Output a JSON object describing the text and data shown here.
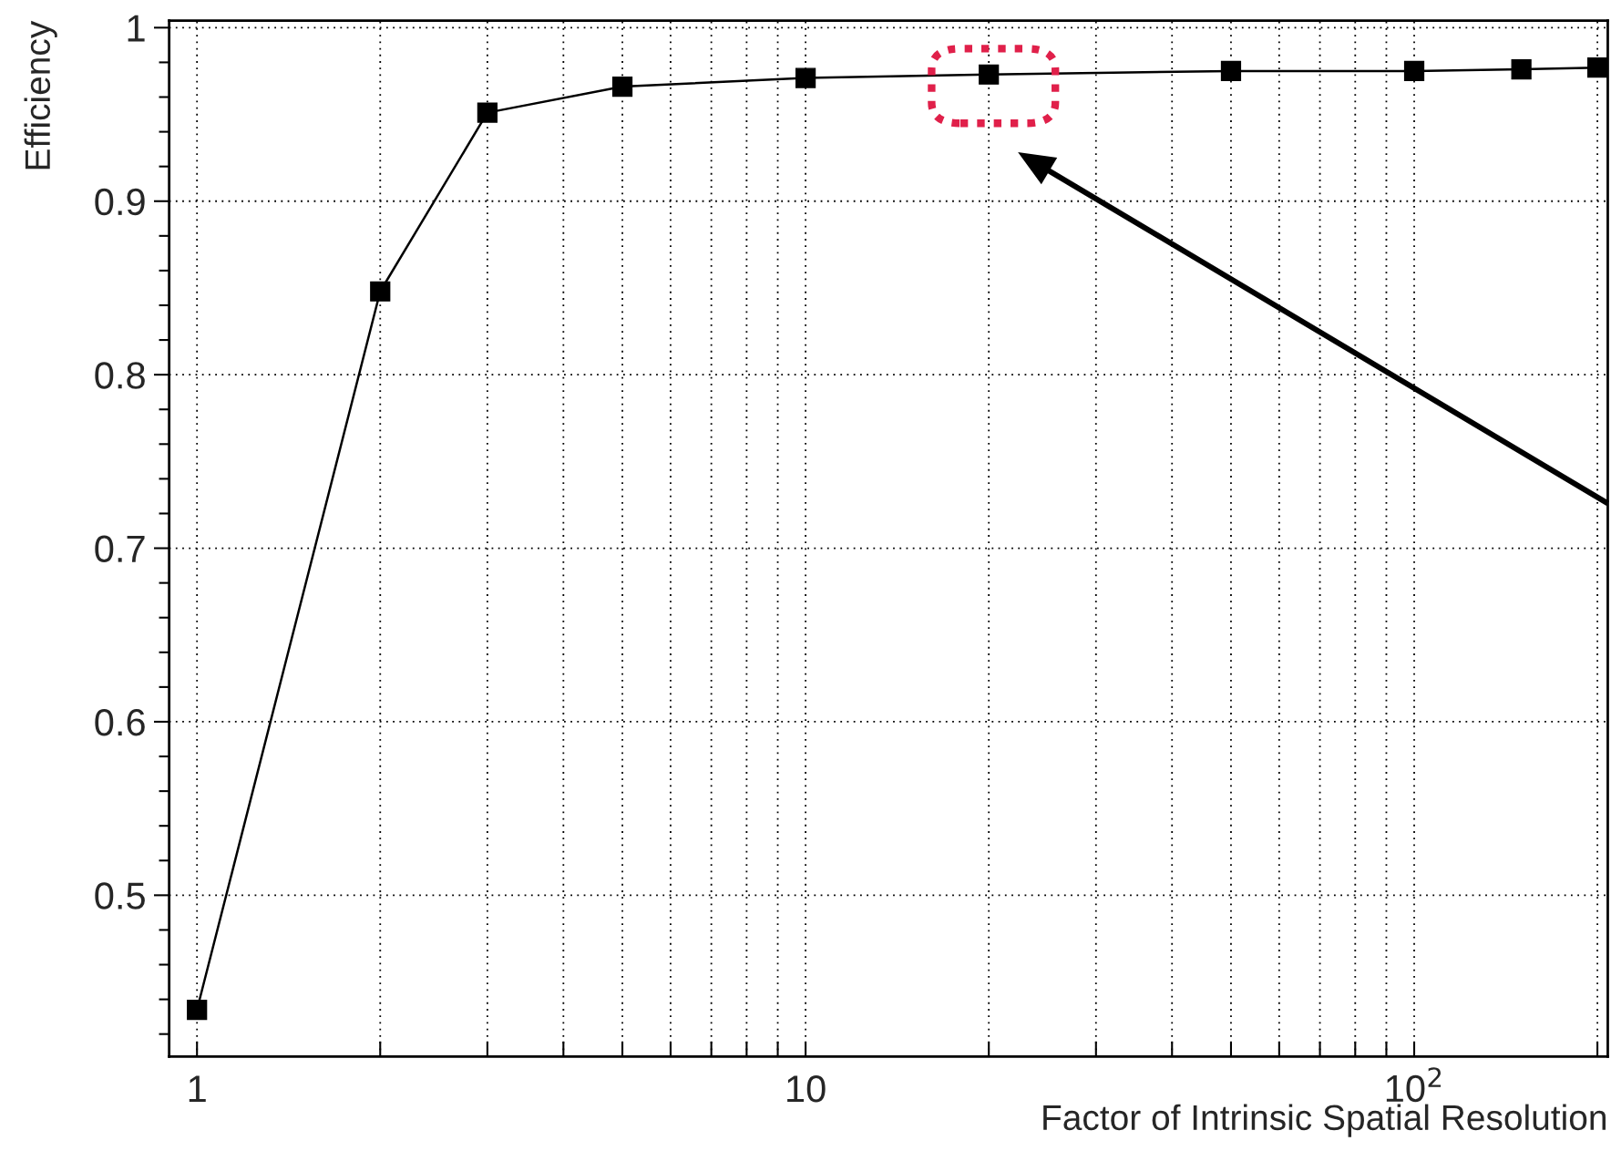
{
  "chart_data": {
    "type": "line",
    "xlabel": "Factor of Intrinsic Spatial Resolution",
    "ylabel": "Efficiency",
    "x": [
      1,
      2,
      3,
      5,
      10,
      20,
      50,
      100,
      150,
      200
    ],
    "series": [
      {
        "color": "#000000",
        "values": [
          0.434,
          0.848,
          0.951,
          0.966,
          0.971,
          0.973,
          0.975,
          0.975,
          0.976,
          0.977
        ]
      }
    ],
    "marker": "square",
    "line_style": "solid",
    "log": "x",
    "grid": true,
    "xlim": [
      0.9,
      208
    ],
    "ylim": [
      0.407,
      1.004
    ],
    "xticks": [
      1,
      {
        "value": 2,
        "label": null
      },
      {
        "value": 3,
        "label": null
      },
      {
        "value": 4,
        "label": null
      },
      {
        "value": 5,
        "label": null
      },
      {
        "value": 6,
        "label": null
      },
      {
        "value": 7,
        "label": null
      },
      {
        "value": 8,
        "label": null
      },
      {
        "value": 9,
        "label": null
      },
      10,
      {
        "value": 20,
        "label": null
      },
      {
        "value": 30,
        "label": null
      },
      {
        "value": 40,
        "label": null
      },
      {
        "value": 50,
        "label": null
      },
      {
        "value": 60,
        "label": null
      },
      {
        "value": 70,
        "label": null
      },
      {
        "value": 80,
        "label": null
      },
      {
        "value": 90,
        "label": null
      },
      {
        "value": 100,
        "label": "10$^{2}$"
      },
      {
        "value": 200,
        "label": null
      }
    ],
    "yticks": [
      0.5,
      0.6,
      0.7,
      0.8,
      0.9,
      1
    ]
  }
}
